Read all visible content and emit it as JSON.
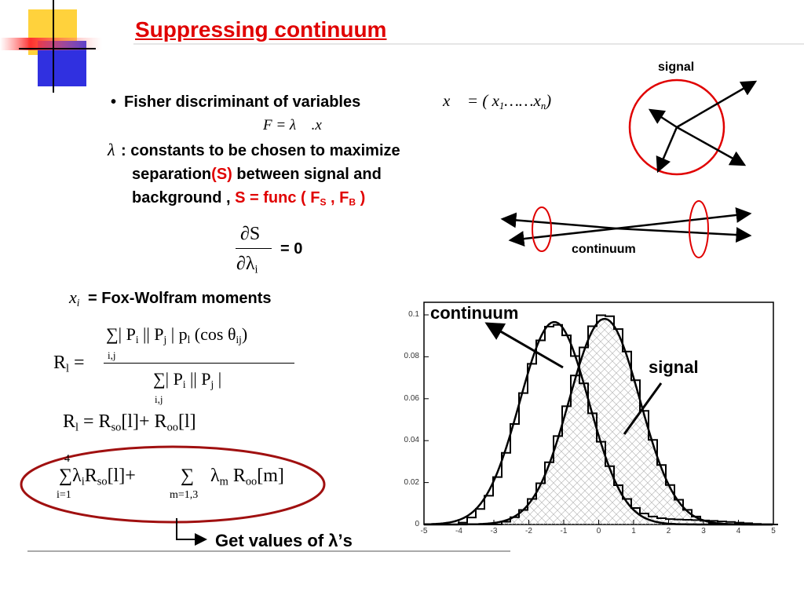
{
  "title": "Suppressing continuum",
  "bullet": {
    "marker": "•",
    "text": "Fisher discriminant of variables",
    "math": [
      {
        "text": "x⃗ = ( x",
        "sub": "1"
      },
      {
        "text": "……x",
        "sub": "n"
      },
      {
        "text": ")"
      }
    ]
  },
  "fisher": [
    {
      "text": "F = λ⃗ .x⃗"
    }
  ],
  "lambda_symbol": "λ⃗",
  "lines": [
    [
      {
        "text": ": constants to be chosen to maximize"
      }
    ],
    [
      {
        "text": "separation"
      },
      {
        "text": "(S)",
        "color": "#e00000"
      },
      {
        "text": " between signal and"
      }
    ],
    [
      {
        "text": "background , "
      },
      {
        "text": "S = func ( F",
        "sub": "S",
        "color": "#e00000"
      },
      {
        "text": " , F",
        "sub": "B",
        "color": "#e00000"
      },
      {
        "text": " )",
        "color": "#e00000"
      }
    ]
  ],
  "derivative": {
    "numerator": "∂S",
    "denominator": [
      {
        "text": "∂λ",
        "sub": "i"
      }
    ],
    "equals": "= 0"
  },
  "fox_wolfram": {
    "symbol": [
      {
        "text": "x",
        "sub": "i"
      }
    ],
    "text": "= Fox-Wolfram moments"
  },
  "r_formula": {
    "lhs": [
      {
        "text": "R",
        "sub": "l"
      },
      {
        "text": " ="
      }
    ],
    "numerator": [
      {
        "text": "∑| P",
        "sub": "i"
      },
      {
        "text": " || P",
        "sub": "j"
      },
      {
        "text": " | p",
        "sub": "l"
      },
      {
        "text": " (cos θ",
        "sub": "ij"
      },
      {
        "text": ")"
      }
    ],
    "numerator_index": "i,j",
    "denominator": [
      {
        "text": "∑| P",
        "sub": "i"
      },
      {
        "text": " || P",
        "sub": "j"
      },
      {
        "text": " |"
      }
    ],
    "denominator_index": "i,j"
  },
  "r_split": [
    {
      "text": "R",
      "sub": "l"
    },
    {
      "text": " = R",
      "sub": "so"
    },
    {
      "text": "[l]+ R",
      "sub": "oo"
    },
    {
      "text": "[l]"
    }
  ],
  "sum_formula": {
    "upper": "4",
    "first": [
      {
        "text": "∑λ",
        "sub": "i"
      },
      {
        "text": "R",
        "sub": "so"
      },
      {
        "text": "[l]+"
      }
    ],
    "lower": "i=1",
    "second_sum": "∑",
    "second_lower": "m=1,3",
    "second": [
      {
        "text": "λ",
        "sub": "m"
      },
      {
        "text": " R",
        "sub": "oo"
      },
      {
        "text": "[m]"
      }
    ]
  },
  "result": "Get values of λ’s",
  "diagram": {
    "signal_label": "signal",
    "continuum_label": "continuum"
  },
  "plot": {
    "continuum_label": "continuum",
    "signal_label": "signal",
    "xlim": [
      -5,
      5
    ],
    "ylim": [
      0,
      0.106
    ],
    "xticks": [
      -5,
      -4,
      -3,
      -2,
      -1,
      0,
      1,
      2,
      3,
      4,
      5
    ],
    "yticks": [
      0,
      0.02,
      0.04,
      0.06,
      0.08,
      0.1
    ]
  }
}
